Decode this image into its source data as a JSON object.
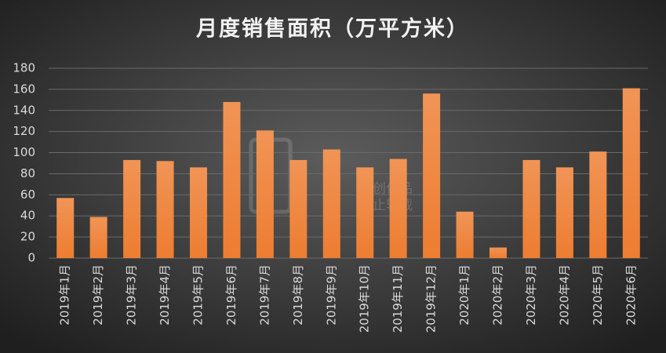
{
  "chart_data": {
    "type": "bar",
    "title": "月度销售面积（万平方米）",
    "categories": [
      "2019年1月",
      "2019年2月",
      "2019年3月",
      "2019年4月",
      "2019年5月",
      "2019年6月",
      "2019年7月",
      "2019年8月",
      "2019年9月",
      "2019年10月",
      "2019年11月",
      "2019年12月",
      "2020年1月",
      "2020年2月",
      "2020年3月",
      "2020年4月",
      "2020年5月",
      "2020年6月"
    ],
    "values": [
      57,
      39,
      93,
      92,
      86,
      148,
      121,
      93,
      103,
      86,
      94,
      156,
      44,
      10,
      93,
      86,
      101,
      161
    ],
    "color": "#ed7d31",
    "ylim": [
      0,
      180
    ],
    "yticks": [
      0,
      20,
      40,
      60,
      80,
      100,
      120,
      140,
      160,
      180
    ],
    "grid": true,
    "watermark": [
      "源创作品",
      "禁止转载"
    ]
  }
}
